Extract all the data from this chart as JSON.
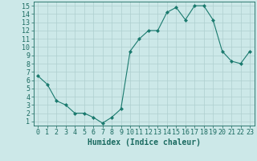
{
  "x": [
    0,
    1,
    2,
    3,
    4,
    5,
    6,
    7,
    8,
    9,
    10,
    11,
    12,
    13,
    14,
    15,
    16,
    17,
    18,
    19,
    20,
    21,
    22,
    23
  ],
  "y": [
    6.5,
    5.5,
    3.5,
    3.0,
    2.0,
    2.0,
    1.5,
    0.8,
    1.5,
    2.5,
    9.5,
    11.0,
    12.0,
    12.0,
    14.2,
    14.8,
    13.3,
    15.0,
    15.0,
    13.3,
    9.5,
    8.3,
    8.0,
    9.5
  ],
  "line_color": "#1a7a6e",
  "marker_color": "#1a7a6e",
  "bg_color": "#cce8e8",
  "grid_color": "#aecfcf",
  "xlabel": "Humidex (Indice chaleur)",
  "ylabel_ticks": [
    1,
    2,
    3,
    4,
    5,
    6,
    7,
    8,
    9,
    10,
    11,
    12,
    13,
    14,
    15
  ],
  "xlim": [
    -0.5,
    23.5
  ],
  "ylim": [
    0.5,
    15.5
  ],
  "label_color": "#1a6a60",
  "font_size_axis": 6,
  "font_size_label": 7
}
